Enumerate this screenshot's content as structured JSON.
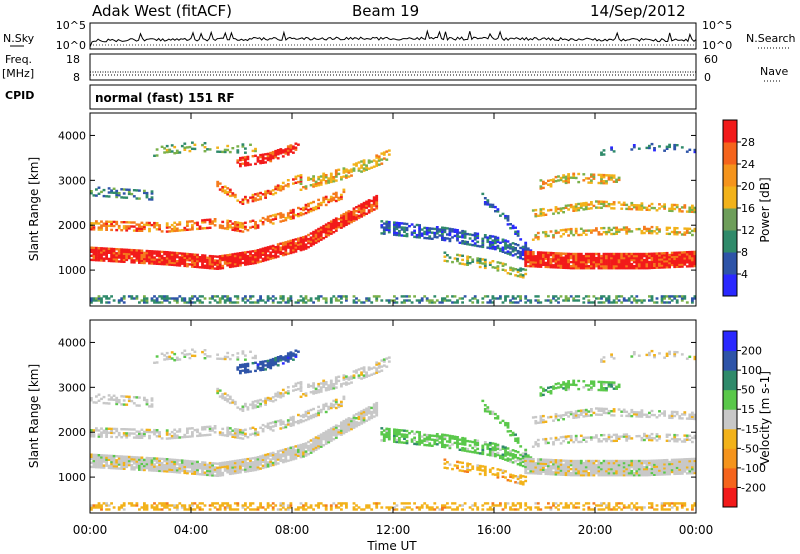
{
  "header": {
    "station": "Adak West (fitACF)",
    "beam": "Beam 19",
    "date": "14/Sep/2012"
  },
  "side_labels": {
    "nsky": "N.Sky",
    "freq_line1": "Freq.",
    "freq_line2": "[MHz]",
    "cpid": "CPID",
    "nsearch": "N.Search",
    "nave": "Nave"
  },
  "cpid_text": "normal (fast) 151 RF",
  "chart_data": [
    {
      "type": "line",
      "panel": "noise",
      "left_ticks": [
        "10^5",
        "10^0"
      ],
      "right_ticks": [
        "10^5",
        "10^0"
      ]
    },
    {
      "type": "line",
      "panel": "frequency",
      "left_ticks": [
        "18",
        "8"
      ],
      "right_ticks": [
        "60",
        "0"
      ]
    },
    {
      "type": "heatmap",
      "panel": "power",
      "ylabel": "Slant Range [km]",
      "yticks": [
        "1000",
        "2000",
        "3000",
        "4000"
      ],
      "ylim": [
        200,
        4500
      ],
      "xlim": [
        0,
        24
      ],
      "colorbar": {
        "label": "Power [dB]",
        "ticks": [
          "4",
          "8",
          "12",
          "16",
          "20",
          "24",
          "28"
        ],
        "colors": [
          "#2a28ff",
          "#2e54a8",
          "#2f8a6a",
          "#7ab04a",
          "#f2b21a",
          "#f57a1c",
          "#f21a1a"
        ]
      }
    },
    {
      "type": "heatmap",
      "panel": "velocity",
      "ylabel": "Slant Range [km]",
      "yticks": [
        "1000",
        "2000",
        "3000",
        "4000"
      ],
      "ylim": [
        200,
        4500
      ],
      "xlim": [
        0,
        24
      ],
      "xticks": [
        "00:00",
        "04:00",
        "08:00",
        "12:00",
        "16:00",
        "20:00",
        "00:00"
      ],
      "xlabel": "Time UT",
      "colorbar": {
        "label": "Velocity [m s-1]",
        "ticks": [
          "200",
          "100",
          "50",
          "15",
          "-15",
          "-50",
          "-100",
          "-200"
        ],
        "colors": [
          "#2a28ff",
          "#2e54a8",
          "#2f8a6a",
          "#5ac84a",
          "#c8c8c8",
          "#f2b21a",
          "#f57a1c",
          "#f21a1a"
        ]
      }
    }
  ]
}
